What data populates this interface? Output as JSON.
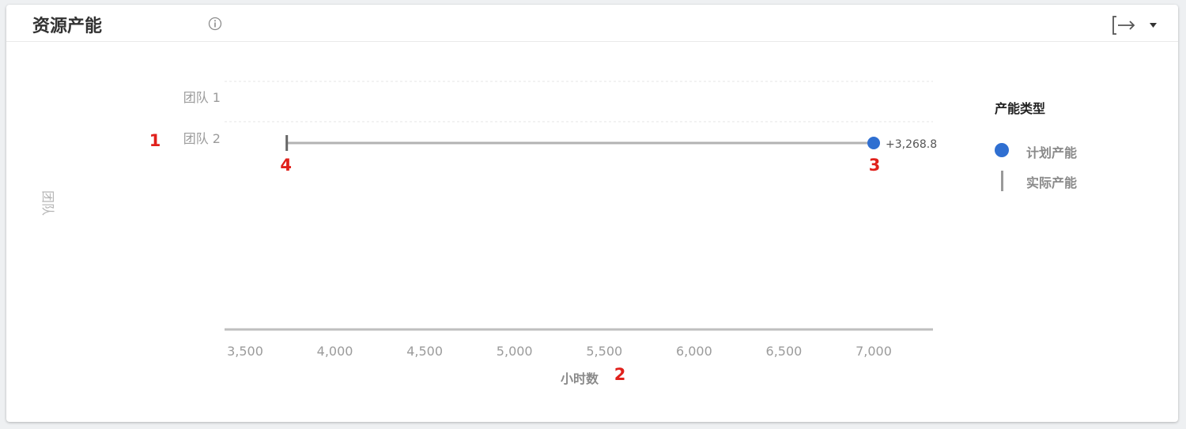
{
  "header": {
    "title": "资源产能"
  },
  "colors": {
    "planned": "#2f6fd1",
    "actual": "#9a9a9a",
    "range_line": "#b3b3b3",
    "axis": "#bfbfbf",
    "tick_text": "#9b9b9b",
    "annotation": "#e0201b"
  },
  "chart_data": {
    "type": "scatter",
    "ylabel": "团队",
    "xlabel": "小时数",
    "categories": [
      "团队 1",
      "团队 2"
    ],
    "xlim": [
      3500,
      7300
    ],
    "xticks": [
      3500,
      4000,
      4500,
      5000,
      5500,
      6000,
      6500,
      7000
    ],
    "xtick_labels": [
      "3,500",
      "4,000",
      "4,500",
      "5,000",
      "5,500",
      "6,000",
      "6,500",
      "7,000"
    ],
    "legend": {
      "title": "产能类型",
      "position": "right",
      "items": [
        {
          "label": "计划产能",
          "marker": "circle"
        },
        {
          "label": "实际产能",
          "marker": "bar"
        }
      ]
    },
    "series": [
      {
        "name": "计划产能",
        "points": [
          {
            "category": "团队 2",
            "x": 7000,
            "label": "+3,268.8"
          }
        ]
      },
      {
        "name": "实际产能",
        "points": [
          {
            "category": "团队 2",
            "x": 3732
          }
        ]
      }
    ],
    "annotations": [
      {
        "text": "1",
        "target": "团队 2 category label"
      },
      {
        "text": "2",
        "target": "x-axis label"
      },
      {
        "text": "3",
        "target": "计划产能 point"
      },
      {
        "text": "4",
        "target": "实际产能 point"
      }
    ],
    "grid": false
  }
}
